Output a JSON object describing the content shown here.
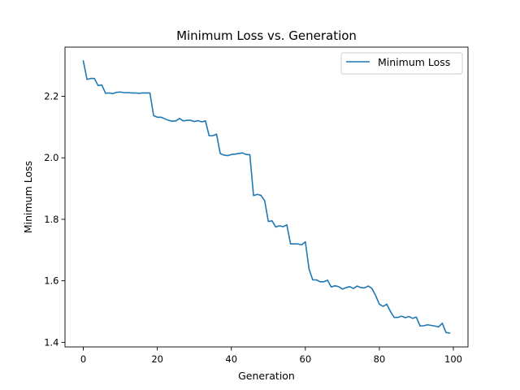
{
  "chart_data": {
    "type": "line",
    "title": "Minimum Loss vs. Generation",
    "xlabel": "Generation",
    "ylabel": "Minimum Loss",
    "xlim": [
      -4.95,
      103.95
    ],
    "ylim": [
      1.385,
      2.36
    ],
    "xticks": [
      0,
      20,
      40,
      60,
      80,
      100
    ],
    "yticks": [
      1.4,
      1.6,
      1.8,
      2.0,
      2.2
    ],
    "ytick_labels": [
      "1.4",
      "1.6",
      "1.8",
      "2.0",
      "2.2"
    ],
    "grid": false,
    "legend_position": "top-right",
    "colors": {
      "line": "#1f77b4",
      "axes": "#000000",
      "legend_border": "#cccccc"
    },
    "series": [
      {
        "name": "Minimum Loss",
        "x": [
          0,
          1,
          2,
          3,
          4,
          5,
          6,
          7,
          8,
          9,
          10,
          11,
          12,
          13,
          14,
          15,
          16,
          17,
          18,
          19,
          20,
          21,
          22,
          23,
          24,
          25,
          26,
          27,
          28,
          29,
          30,
          31,
          32,
          33,
          34,
          35,
          36,
          37,
          38,
          39,
          40,
          41,
          42,
          43,
          44,
          45,
          46,
          47,
          48,
          49,
          50,
          51,
          52,
          53,
          54,
          55,
          56,
          57,
          58,
          59,
          60,
          61,
          62,
          63,
          64,
          65,
          66,
          67,
          68,
          69,
          70,
          71,
          72,
          73,
          74,
          75,
          76,
          77,
          78,
          79,
          80,
          81,
          82,
          83,
          84,
          85,
          86,
          87,
          88,
          89,
          90,
          91,
          92,
          93,
          94,
          95,
          96,
          97,
          98,
          99
        ],
        "y": [
          2.315,
          2.255,
          2.258,
          2.258,
          2.235,
          2.237,
          2.21,
          2.211,
          2.209,
          2.213,
          2.214,
          2.212,
          2.212,
          2.211,
          2.211,
          2.21,
          2.211,
          2.211,
          2.211,
          2.137,
          2.132,
          2.132,
          2.127,
          2.122,
          2.119,
          2.12,
          2.128,
          2.12,
          2.122,
          2.122,
          2.118,
          2.121,
          2.117,
          2.12,
          2.072,
          2.072,
          2.077,
          2.014,
          2.009,
          2.007,
          2.011,
          2.012,
          2.014,
          2.016,
          2.011,
          2.01,
          1.877,
          1.881,
          1.878,
          1.861,
          1.793,
          1.795,
          1.775,
          1.779,
          1.776,
          1.782,
          1.72,
          1.72,
          1.72,
          1.717,
          1.727,
          1.638,
          1.603,
          1.603,
          1.597,
          1.597,
          1.602,
          1.58,
          1.584,
          1.581,
          1.573,
          1.578,
          1.581,
          1.575,
          1.583,
          1.578,
          1.577,
          1.583,
          1.575,
          1.552,
          1.524,
          1.517,
          1.524,
          1.5,
          1.481,
          1.481,
          1.485,
          1.48,
          1.484,
          1.478,
          1.482,
          1.453,
          1.454,
          1.457,
          1.455,
          1.453,
          1.45,
          1.462,
          1.432,
          1.43
        ]
      }
    ]
  }
}
